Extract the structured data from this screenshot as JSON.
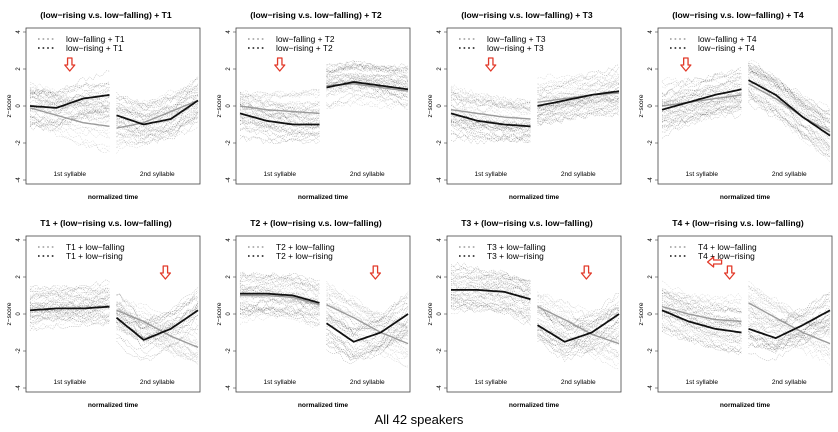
{
  "caption": "All 42 speakers",
  "colors": {
    "gray": "#9a9a9a",
    "black": "#111111",
    "arrow": "#e23a2a",
    "frame": "#444444"
  },
  "chart_data": [
    {
      "type": "line",
      "title": "(low−rising v.s. low−falling) + T1",
      "xlabel": "normalized time",
      "ylabel": "z−score",
      "ylim": [
        -4,
        4
      ],
      "yticks": [
        "-4",
        "-2",
        "0",
        "2",
        "4"
      ],
      "segment_labels": [
        "1st syllable",
        "2nd syllable"
      ],
      "series": [
        {
          "name": "low−falling + T1",
          "color": "gray",
          "values": [
            -0.1,
            -0.5,
            -0.9,
            -1.1,
            -1.2,
            -0.9,
            -0.3,
            0.3
          ]
        },
        {
          "name": "low−rising + T1",
          "color": "black",
          "values": [
            0.0,
            -0.1,
            0.4,
            0.6,
            -0.5,
            -1.0,
            -0.7,
            0.3
          ]
        }
      ],
      "arrow": {
        "direction": "down",
        "segment": 1,
        "position": 0.5
      }
    },
    {
      "type": "line",
      "title": "(low−rising v.s. low−falling) + T2",
      "xlabel": "normalized time",
      "ylabel": "z−score",
      "ylim": [
        -4,
        4
      ],
      "yticks": [
        "-4",
        "-2",
        "0",
        "2",
        "4"
      ],
      "segment_labels": [
        "1st syllable",
        "2nd syllable"
      ],
      "series": [
        {
          "name": "low−falling + T2",
          "color": "gray",
          "values": [
            0.0,
            -0.2,
            -0.3,
            -0.4,
            1.1,
            1.2,
            1.0,
            0.8
          ]
        },
        {
          "name": "low−rising + T2",
          "color": "black",
          "values": [
            -0.4,
            -0.8,
            -1.0,
            -1.0,
            1.0,
            1.3,
            1.1,
            0.9
          ]
        }
      ],
      "arrow": {
        "direction": "down",
        "segment": 1,
        "position": 0.5
      }
    },
    {
      "type": "line",
      "title": "(low−rising v.s. low−falling) + T3",
      "xlabel": "normalized time",
      "ylabel": "z−score",
      "ylim": [
        -4,
        4
      ],
      "yticks": [
        "-4",
        "-2",
        "0",
        "2",
        "4"
      ],
      "segment_labels": [
        "1st syllable",
        "2nd syllable"
      ],
      "series": [
        {
          "name": "low−falling + T3",
          "color": "gray",
          "values": [
            -0.2,
            -0.4,
            -0.6,
            -0.7,
            0.2,
            0.4,
            0.6,
            0.7
          ]
        },
        {
          "name": "low−rising + T3",
          "color": "black",
          "values": [
            -0.4,
            -0.8,
            -1.0,
            -1.1,
            0.0,
            0.3,
            0.6,
            0.8
          ]
        }
      ],
      "arrow": {
        "direction": "down",
        "segment": 1,
        "position": 0.5
      }
    },
    {
      "type": "line",
      "title": "(low−rising v.s. low−falling) + T4",
      "xlabel": "normalized time",
      "ylabel": "z−score",
      "ylim": [
        -4,
        4
      ],
      "yticks": [
        "-4",
        "-2",
        "0",
        "2",
        "4"
      ],
      "segment_labels": [
        "1st syllable",
        "2nd syllable"
      ],
      "series": [
        {
          "name": "low−falling + T4",
          "color": "gray",
          "values": [
            0.0,
            0.2,
            0.4,
            0.6,
            1.2,
            0.4,
            -0.6,
            -1.4
          ]
        },
        {
          "name": "low−rising + T4",
          "color": "black",
          "values": [
            -0.2,
            0.2,
            0.6,
            0.9,
            1.4,
            0.6,
            -0.6,
            -1.6
          ]
        }
      ],
      "arrow": {
        "direction": "down",
        "segment": 1,
        "position": 0.3
      }
    },
    {
      "type": "line",
      "title": "T1 + (low−rising v.s. low−falling)",
      "xlabel": "normalized time",
      "ylabel": "z−score",
      "ylim": [
        -4,
        4
      ],
      "yticks": [
        "-4",
        "-2",
        "0",
        "2",
        "4"
      ],
      "segment_labels": [
        "1st syllable",
        "2nd syllable"
      ],
      "series": [
        {
          "name": "T1 + low−falling",
          "color": "gray",
          "values": [
            0.2,
            0.3,
            0.3,
            0.4,
            0.2,
            -0.4,
            -1.2,
            -1.8
          ]
        },
        {
          "name": "T1 + low−rising",
          "color": "black",
          "values": [
            0.2,
            0.3,
            0.3,
            0.4,
            -0.2,
            -1.4,
            -0.8,
            0.2
          ]
        }
      ],
      "arrow": {
        "direction": "down",
        "segment": 2,
        "position": 0.6
      }
    },
    {
      "type": "line",
      "title": "T2 + (low−rising v.s. low−falling)",
      "xlabel": "normalized time",
      "ylabel": "z−score",
      "ylim": [
        -4,
        4
      ],
      "yticks": [
        "-4",
        "-2",
        "0",
        "2",
        "4"
      ],
      "segment_labels": [
        "1st syllable",
        "2nd syllable"
      ],
      "series": [
        {
          "name": "T2 + low−falling",
          "color": "gray",
          "values": [
            1.0,
            1.0,
            0.9,
            0.5,
            0.5,
            -0.2,
            -1.0,
            -1.6
          ]
        },
        {
          "name": "T2 + low−rising",
          "color": "black",
          "values": [
            1.1,
            1.1,
            1.0,
            0.6,
            -0.5,
            -1.5,
            -1.0,
            0.0
          ]
        }
      ],
      "arrow": {
        "direction": "down",
        "segment": 2,
        "position": 0.6
      }
    },
    {
      "type": "line",
      "title": "T3 + (low−rising v.s. low−falling)",
      "xlabel": "normalized time",
      "ylabel": "z−score",
      "ylim": [
        -4,
        4
      ],
      "yticks": [
        "-4",
        "-2",
        "0",
        "2",
        "4"
      ],
      "segment_labels": [
        "1st syllable",
        "2nd syllable"
      ],
      "series": [
        {
          "name": "T3 + low−falling",
          "color": "gray",
          "values": [
            1.3,
            1.3,
            1.2,
            0.8,
            0.4,
            -0.3,
            -1.1,
            -1.6
          ]
        },
        {
          "name": "T3 + low−rising",
          "color": "black",
          "values": [
            1.3,
            1.3,
            1.2,
            0.8,
            -0.6,
            -1.5,
            -1.0,
            0.0
          ]
        }
      ],
      "arrow": {
        "direction": "down",
        "segment": 2,
        "position": 0.6
      }
    },
    {
      "type": "line",
      "title": "T4 + (low−rising v.s. low−falling)",
      "xlabel": "normalized time",
      "ylabel": "z−score",
      "ylim": [
        -4,
        4
      ],
      "yticks": [
        "-4",
        "-2",
        "0",
        "2",
        "4"
      ],
      "segment_labels": [
        "1st syllable",
        "2nd syllable"
      ],
      "series": [
        {
          "name": "T4 + low−falling",
          "color": "gray",
          "values": [
            0.4,
            0.0,
            -0.3,
            -0.4,
            0.6,
            -0.2,
            -1.0,
            -1.6
          ]
        },
        {
          "name": "T4 + low−rising",
          "color": "black",
          "values": [
            0.2,
            -0.4,
            -0.8,
            -1.0,
            -0.8,
            -1.3,
            -0.6,
            0.2
          ]
        }
      ],
      "arrow": {
        "direction": "down",
        "segment": 1,
        "position": 0.85
      }
    }
  ]
}
